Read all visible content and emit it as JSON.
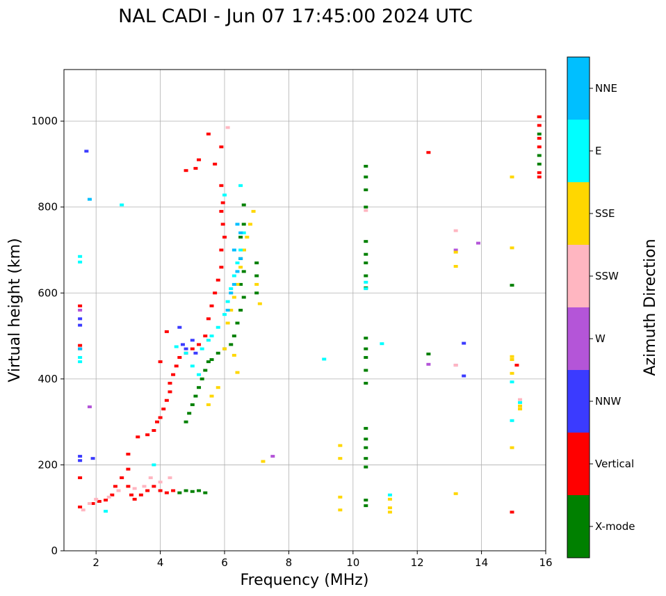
{
  "chart_data": {
    "type": "scatter",
    "title": "NAL CADI - Jun 07 17:45:00 2024 UTC",
    "xlabel": "Frequency (MHz)",
    "ylabel": "Virtual height (km)",
    "xlim": [
      1,
      16
    ],
    "ylim": [
      0,
      1120
    ],
    "xticks": [
      2,
      4,
      6,
      8,
      10,
      12,
      14,
      16
    ],
    "yticks": [
      0,
      200,
      400,
      600,
      800,
      1000
    ],
    "grid": true,
    "colorbar": {
      "label": "Azimuth Direction",
      "categories": [
        "X-mode",
        "Vertical",
        "NNW",
        "W",
        "SSW",
        "SSE",
        "E",
        "NNE"
      ],
      "colors": [
        "#008000",
        "#ff0000",
        "#3b3bff",
        "#b455d8",
        "#ffb6c1",
        "#ffd700",
        "#00ffff",
        "#00bfff"
      ]
    },
    "series": [
      {
        "name": "X-mode",
        "points": [
          [
            4.6,
            135
          ],
          [
            4.8,
            140
          ],
          [
            5.0,
            138
          ],
          [
            5.2,
            140
          ],
          [
            5.4,
            135
          ],
          [
            4.8,
            300
          ],
          [
            4.9,
            320
          ],
          [
            5.0,
            340
          ],
          [
            5.1,
            360
          ],
          [
            5.2,
            380
          ],
          [
            5.3,
            400
          ],
          [
            5.4,
            420
          ],
          [
            5.5,
            440
          ],
          [
            5.6,
            445
          ],
          [
            5.8,
            460
          ],
          [
            6.0,
            470
          ],
          [
            6.2,
            480
          ],
          [
            6.3,
            500
          ],
          [
            6.4,
            530
          ],
          [
            6.5,
            560
          ],
          [
            6.6,
            590
          ],
          [
            6.5,
            620
          ],
          [
            6.6,
            650
          ],
          [
            6.5,
            680
          ],
          [
            6.6,
            700
          ],
          [
            6.5,
            730
          ],
          [
            6.6,
            760
          ],
          [
            6.6,
            805
          ],
          [
            7.0,
            600
          ],
          [
            7.0,
            640
          ],
          [
            7.0,
            670
          ],
          [
            10.4,
            895
          ],
          [
            10.4,
            870
          ],
          [
            10.4,
            840
          ],
          [
            10.4,
            800
          ],
          [
            10.4,
            720
          ],
          [
            10.4,
            690
          ],
          [
            10.4,
            670
          ],
          [
            10.4,
            640
          ],
          [
            10.4,
            612
          ],
          [
            10.4,
            495
          ],
          [
            10.4,
            470
          ],
          [
            10.4,
            450
          ],
          [
            10.4,
            420
          ],
          [
            10.4,
            390
          ],
          [
            10.4,
            285
          ],
          [
            10.4,
            260
          ],
          [
            10.4,
            240
          ],
          [
            10.4,
            215
          ],
          [
            10.4,
            195
          ],
          [
            10.4,
            118
          ],
          [
            10.4,
            105
          ],
          [
            12.35,
            458
          ],
          [
            14.95,
            618
          ],
          [
            15.8,
            1010
          ],
          [
            15.8,
            970
          ],
          [
            15.8,
            920
          ],
          [
            15.8,
            900
          ]
        ]
      },
      {
        "name": "Vertical",
        "points": [
          [
            1.5,
            102
          ],
          [
            1.9,
            110
          ],
          [
            2.1,
            115
          ],
          [
            2.3,
            118
          ],
          [
            2.5,
            130
          ],
          [
            2.6,
            150
          ],
          [
            2.8,
            170
          ],
          [
            3.0,
            190
          ],
          [
            3.0,
            150
          ],
          [
            3.1,
            130
          ],
          [
            3.2,
            120
          ],
          [
            3.4,
            130
          ],
          [
            3.6,
            140
          ],
          [
            3.8,
            150
          ],
          [
            4.0,
            140
          ],
          [
            4.2,
            135
          ],
          [
            4.4,
            140
          ],
          [
            3.0,
            225
          ],
          [
            3.3,
            265
          ],
          [
            3.6,
            270
          ],
          [
            3.8,
            280
          ],
          [
            3.9,
            300
          ],
          [
            4.0,
            310
          ],
          [
            4.1,
            330
          ],
          [
            4.2,
            350
          ],
          [
            4.3,
            370
          ],
          [
            4.3,
            390
          ],
          [
            4.4,
            410
          ],
          [
            4.5,
            430
          ],
          [
            4.6,
            450
          ],
          [
            4.8,
            460
          ],
          [
            5.0,
            470
          ],
          [
            5.2,
            480
          ],
          [
            5.4,
            500
          ],
          [
            5.5,
            540
          ],
          [
            5.6,
            570
          ],
          [
            5.7,
            600
          ],
          [
            5.8,
            630
          ],
          [
            5.9,
            660
          ],
          [
            5.9,
            700
          ],
          [
            6.0,
            730
          ],
          [
            5.95,
            760
          ],
          [
            5.9,
            790
          ],
          [
            5.95,
            810
          ],
          [
            5.9,
            850
          ],
          [
            5.7,
            900
          ],
          [
            5.9,
            940
          ],
          [
            5.5,
            970
          ],
          [
            5.2,
            910
          ],
          [
            5.1,
            890
          ],
          [
            4.8,
            885
          ],
          [
            4.2,
            510
          ],
          [
            4.0,
            440
          ],
          [
            1.5,
            170
          ],
          [
            1.5,
            478
          ],
          [
            1.5,
            470
          ],
          [
            1.5,
            570
          ],
          [
            12.35,
            927
          ],
          [
            15.1,
            432
          ],
          [
            15.8,
            1010
          ],
          [
            15.8,
            990
          ],
          [
            15.8,
            960
          ],
          [
            15.8,
            940
          ],
          [
            15.8,
            870
          ],
          [
            15.8,
            880
          ],
          [
            14.95,
            90
          ]
        ]
      },
      {
        "name": "NNW",
        "points": [
          [
            1.5,
            210
          ],
          [
            1.5,
            220
          ],
          [
            1.9,
            215
          ],
          [
            4.7,
            480
          ],
          [
            4.8,
            470
          ],
          [
            5.0,
            490
          ],
          [
            5.1,
            460
          ],
          [
            4.6,
            520
          ],
          [
            1.5,
            540
          ],
          [
            1.5,
            525
          ],
          [
            1.7,
            930
          ],
          [
            13.45,
            483
          ],
          [
            13.45,
            407
          ]
        ]
      },
      {
        "name": "W",
        "points": [
          [
            1.5,
            560
          ],
          [
            1.8,
            335
          ],
          [
            7.5,
            220
          ],
          [
            13.9,
            716
          ],
          [
            13.2,
            700
          ],
          [
            12.35,
            434
          ],
          [
            13.2,
            432
          ]
        ]
      },
      {
        "name": "SSW",
        "points": [
          [
            1.6,
            95
          ],
          [
            1.8,
            110
          ],
          [
            2.0,
            120
          ],
          [
            2.4,
            125
          ],
          [
            2.7,
            140
          ],
          [
            3.2,
            145
          ],
          [
            3.5,
            150
          ],
          [
            3.7,
            170
          ],
          [
            4.0,
            160
          ],
          [
            4.3,
            170
          ],
          [
            6.1,
            985
          ],
          [
            10.4,
            792
          ],
          [
            13.2,
            745
          ],
          [
            13.2,
            432
          ],
          [
            15.2,
            352
          ]
        ]
      },
      {
        "name": "SSE",
        "points": [
          [
            5.5,
            340
          ],
          [
            5.6,
            360
          ],
          [
            5.8,
            380
          ],
          [
            6.0,
            470
          ],
          [
            6.1,
            530
          ],
          [
            6.2,
            560
          ],
          [
            6.3,
            590
          ],
          [
            6.4,
            620
          ],
          [
            6.5,
            660
          ],
          [
            6.6,
            700
          ],
          [
            6.7,
            730
          ],
          [
            6.8,
            760
          ],
          [
            6.9,
            790
          ],
          [
            7.0,
            620
          ],
          [
            6.3,
            455
          ],
          [
            6.4,
            415
          ],
          [
            7.1,
            575
          ],
          [
            7.2,
            208
          ],
          [
            9.6,
            245
          ],
          [
            9.6,
            215
          ],
          [
            9.6,
            125
          ],
          [
            9.6,
            95
          ],
          [
            11.15,
            120
          ],
          [
            11.15,
            100
          ],
          [
            11.15,
            90
          ],
          [
            13.2,
            695
          ],
          [
            13.2,
            662
          ],
          [
            13.2,
            133
          ],
          [
            14.95,
            870
          ],
          [
            14.95,
            705
          ],
          [
            14.95,
            452
          ],
          [
            14.95,
            445
          ],
          [
            14.95,
            413
          ],
          [
            14.95,
            240
          ],
          [
            15.2,
            330
          ],
          [
            15.2,
            337
          ]
        ]
      },
      {
        "name": "E",
        "points": [
          [
            1.5,
            450
          ],
          [
            1.5,
            440
          ],
          [
            1.5,
            685
          ],
          [
            1.5,
            672
          ],
          [
            2.8,
            805
          ],
          [
            4.5,
            475
          ],
          [
            4.8,
            460
          ],
          [
            5.0,
            430
          ],
          [
            5.2,
            410
          ],
          [
            5.3,
            470
          ],
          [
            5.5,
            490
          ],
          [
            5.6,
            500
          ],
          [
            5.8,
            520
          ],
          [
            6.0,
            550
          ],
          [
            6.1,
            580
          ],
          [
            6.2,
            610
          ],
          [
            6.3,
            640
          ],
          [
            6.4,
            670
          ],
          [
            6.5,
            700
          ],
          [
            6.6,
            740
          ],
          [
            6.0,
            828
          ],
          [
            2.3,
            92
          ],
          [
            3.8,
            200
          ],
          [
            9.1,
            446
          ],
          [
            10.4,
            625
          ],
          [
            10.4,
            610
          ],
          [
            10.9,
            482
          ],
          [
            11.15,
            130
          ],
          [
            14.95,
            393
          ],
          [
            14.95,
            303
          ],
          [
            15.2,
            345
          ],
          [
            6.5,
            850
          ]
        ]
      },
      {
        "name": "NNE",
        "points": [
          [
            6.3,
            620
          ],
          [
            6.4,
            650
          ],
          [
            6.5,
            680
          ],
          [
            6.3,
            700
          ],
          [
            6.5,
            740
          ],
          [
            6.4,
            760
          ],
          [
            6.2,
            600
          ],
          [
            6.1,
            560
          ],
          [
            1.8,
            818
          ],
          [
            1.5,
            470
          ]
        ]
      }
    ]
  }
}
